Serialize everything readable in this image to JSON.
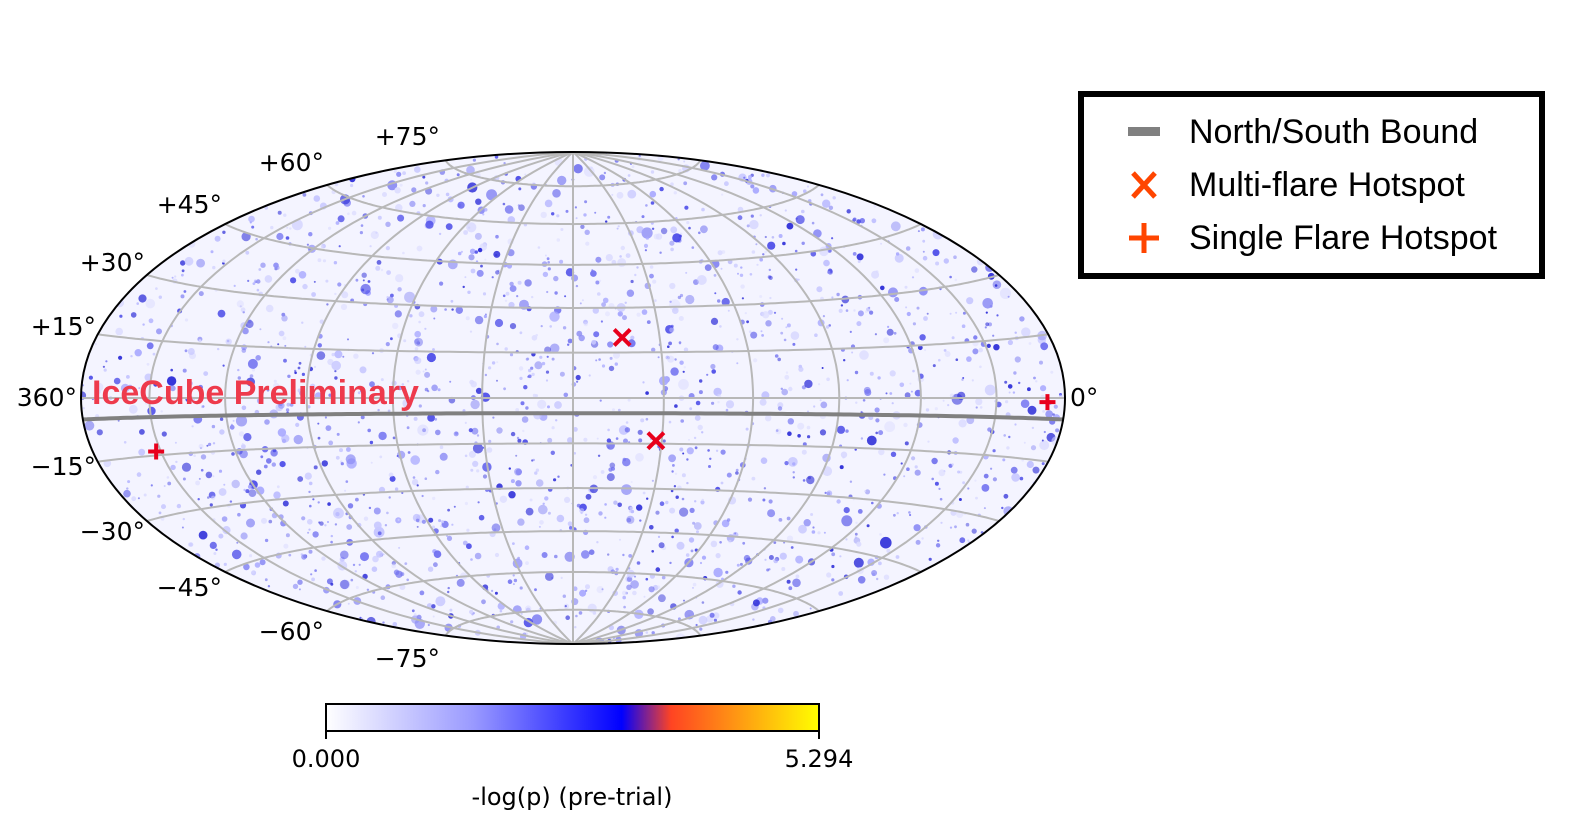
{
  "chart_data": {
    "type": "heatmap",
    "projection": "Hammer-Aitoff (full sky)",
    "watermark": "IceCube Preliminary",
    "lat_ticks": [
      "+75°",
      "+60°",
      "+45°",
      "+30°",
      "+15°",
      "−15°",
      "−30°",
      "−45°",
      "−60°",
      "−75°"
    ],
    "lon_ticks": [
      "360°",
      "0°"
    ],
    "colorbar": {
      "min_label": "0.000",
      "max_label": "5.294",
      "label": "-log(p) (pre-trial)",
      "range": [
        0.0,
        5.294
      ],
      "colors": [
        "#ffffff",
        "#9999ff",
        "#0000ff",
        "#ff4422",
        "#ffff00"
      ]
    },
    "legend": {
      "items": [
        {
          "label": "North/South Bound",
          "symbol": "bar",
          "color": "#808080"
        },
        {
          "label": "Multi-flare Hotspot",
          "symbol": "x",
          "color": "#ff4500"
        },
        {
          "label": "Single Flare Hotspot",
          "symbol": "plus",
          "color": "#ff4500"
        }
      ],
      "placement": "upper-right"
    },
    "boundary_dec_deg": -5,
    "hotspots": [
      {
        "type": "multi",
        "ra_deg": 163,
        "dec_deg": 20
      },
      {
        "type": "multi",
        "ra_deg": 152,
        "dec_deg": -14
      },
      {
        "type": "single",
        "ra_deg": 8,
        "dec_deg": -1
      },
      {
        "type": "single",
        "ra_deg": 332,
        "dec_deg": -14
      }
    ],
    "marker_color": "#e8001c"
  }
}
